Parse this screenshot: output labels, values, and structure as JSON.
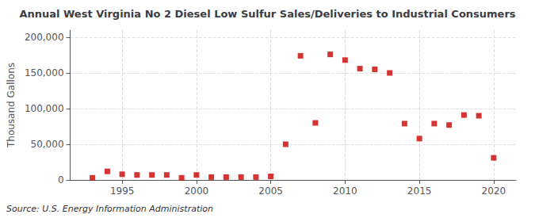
{
  "chart_data": {
    "type": "scatter",
    "title": "Annual West Virginia No 2 Diesel Low Sulfur Sales/Deliveries to Industrial Consumers",
    "ylabel": "Thousand Gallons",
    "source": "Source: U.S. Energy Information Administration",
    "color": "#cc0000",
    "marker": "square",
    "x": [
      1993,
      1994,
      1995,
      1996,
      1997,
      1998,
      1999,
      2000,
      2001,
      2002,
      2003,
      2004,
      2005,
      2006,
      2007,
      2008,
      2009,
      2010,
      2011,
      2012,
      2013,
      2014,
      2015,
      2016,
      2017,
      2018,
      2019,
      2020
    ],
    "values": [
      3000,
      12000,
      8000,
      7000,
      7000,
      7000,
      3000,
      7000,
      4000,
      4000,
      4000,
      4000,
      5000,
      50000,
      174000,
      80000,
      176000,
      168000,
      156000,
      155000,
      150000,
      79000,
      58000,
      79000,
      77000,
      91000,
      90000,
      31000
    ],
    "xlim": [
      1991.5,
      2021.5
    ],
    "xticks": [
      1995,
      2000,
      2005,
      2010,
      2015,
      2020
    ],
    "ylim": [
      0,
      210000
    ],
    "yticks": [
      0,
      {
        "value": 50000,
        "label": "50,000"
      },
      {
        "value": 100000,
        "label": "100,000"
      },
      {
        "value": 150000,
        "label": "150,000"
      },
      {
        "value": 200000,
        "label": "200,000"
      }
    ],
    "grid": true
  }
}
